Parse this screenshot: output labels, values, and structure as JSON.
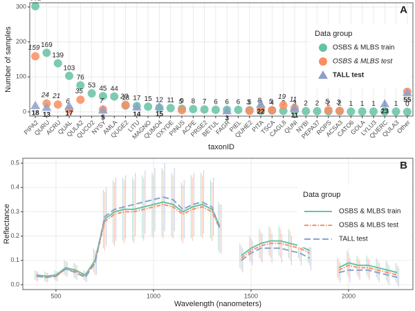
{
  "chart_data": [
    {
      "type": "scatter",
      "panel_label": "A",
      "x_label": "taxonID",
      "y_label": "Number of samples",
      "legend_title": "Data group",
      "legend_position": "top-right",
      "grid": true,
      "categories": [
        "PIPA2",
        "QURU",
        "ACRU",
        "QUAL",
        "QULA2",
        "QUCO2",
        "NYSY",
        "AMLA",
        "QUGE2",
        "LITU",
        "MAGNO",
        "QUMO4",
        "OXYDE",
        "PINUS",
        "ACPE",
        "PRSE2",
        "BETUL",
        "FAGR",
        "PIEL",
        "QUHE2",
        "PITA",
        "TSCA",
        "CAGL8",
        "QUNI",
        "NYBI",
        "PEPA37",
        "ROPS",
        "ACSA3",
        "CATO6",
        "GOLA",
        "LYLU3",
        "QUERC",
        "QULA3",
        "Other"
      ],
      "ylim": [
        -12,
        312
      ],
      "yticks": [
        0,
        100,
        200,
        300
      ],
      "series": [
        {
          "name": "OSBS & MLBS train",
          "color": "#66c2a5",
          "marker": "circle",
          "values": [
            302,
            169,
            139,
            103,
            76,
            53,
            45,
            44,
            18,
            17,
            15,
            12,
            11,
            9,
            8,
            7,
            6,
            6,
            6,
            5,
            3,
            4,
            3,
            3,
            2,
            2,
            2,
            2,
            1,
            1,
            1,
            1,
            1,
            0
          ]
        },
        {
          "name": "OSBS & MLBS test",
          "color": "#fc8d62",
          "marker": "circle",
          "values": [
            159,
            24,
            21,
            6,
            35,
            null,
            7,
            null,
            20,
            null,
            null,
            null,
            null,
            5,
            null,
            null,
            null,
            null,
            null,
            3,
            8,
            5,
            19,
            11,
            null,
            null,
            5,
            3,
            null,
            null,
            null,
            null,
            null,
            58
          ]
        },
        {
          "name": "TALL test",
          "color": "#8da0cb",
          "marker": "triangle",
          "values": [
            18,
            13,
            null,
            17,
            null,
            null,
            5,
            null,
            null,
            14,
            null,
            15,
            null,
            null,
            null,
            null,
            null,
            3,
            null,
            null,
            22,
            null,
            null,
            11,
            null,
            null,
            null,
            null,
            null,
            null,
            null,
            23,
            null,
            55
          ]
        }
      ]
    },
    {
      "type": "line",
      "panel_label": "B",
      "x_label": "Wavelength (nanometers)",
      "y_label": "Reflectance",
      "legend_title": "Data group",
      "legend_position": "right",
      "grid": true,
      "x": [
        400,
        450,
        500,
        550,
        600,
        650,
        700,
        750,
        800,
        850,
        900,
        950,
        1000,
        1050,
        1100,
        1150,
        1200,
        1250,
        1300,
        1340,
        1400,
        1450,
        1500,
        1550,
        1600,
        1650,
        1700,
        1750,
        1800,
        1875,
        1950,
        2000,
        2050,
        2100,
        2150,
        2200,
        2250
      ],
      "xlim": [
        330,
        2330
      ],
      "xticks": [
        500,
        1000,
        1500,
        2000
      ],
      "ylim": [
        -0.02,
        0.52
      ],
      "yticks": [
        {
          "value": 0,
          "label": "0.0"
        },
        {
          "value": 0.1,
          "label": "0.1"
        },
        {
          "value": 0.2,
          "label": "0.2"
        },
        {
          "value": 0.3,
          "label": "0.3"
        },
        {
          "value": 0.4,
          "label": "0.4"
        },
        {
          "value": 0.5,
          "label": "0.5"
        }
      ],
      "series": [
        {
          "name": "OSBS & MLBS train",
          "color": "#66c2a5",
          "linetype": "solid",
          "values": [
            0.04,
            0.035,
            0.04,
            0.07,
            0.06,
            0.04,
            0.1,
            0.27,
            0.3,
            0.31,
            0.31,
            0.32,
            0.33,
            0.34,
            0.33,
            0.3,
            0.32,
            0.33,
            0.31,
            0.24,
            null,
            0.12,
            0.15,
            0.17,
            0.18,
            0.18,
            0.17,
            0.16,
            0.14,
            null,
            0.07,
            0.09,
            0.08,
            0.08,
            0.07,
            0.06,
            0.05
          ],
          "errors": [
            0.02,
            0.02,
            0.02,
            0.03,
            0.03,
            0.02,
            0.05,
            0.12,
            0.13,
            0.13,
            0.13,
            0.13,
            0.13,
            0.14,
            0.13,
            0.12,
            0.13,
            0.13,
            0.12,
            0.1,
            null,
            0.05,
            0.05,
            0.06,
            0.06,
            0.06,
            0.06,
            0.05,
            0.05,
            null,
            0.04,
            0.05,
            0.04,
            0.04,
            0.04,
            0.04,
            0.04
          ]
        },
        {
          "name": "OSBS & MLBS test",
          "color": "#fc8d62",
          "linetype": "dotdash",
          "values": [
            0.035,
            0.03,
            0.035,
            0.065,
            0.055,
            0.035,
            0.09,
            0.26,
            0.29,
            0.3,
            0.3,
            0.31,
            0.32,
            0.33,
            0.32,
            0.29,
            0.31,
            0.32,
            0.3,
            0.23,
            null,
            0.11,
            0.14,
            0.16,
            0.17,
            0.17,
            0.16,
            0.15,
            0.13,
            null,
            0.06,
            0.08,
            0.07,
            0.07,
            0.06,
            0.05,
            0.04
          ],
          "errors": [
            0.02,
            0.02,
            0.02,
            0.03,
            0.03,
            0.02,
            0.05,
            0.12,
            0.13,
            0.13,
            0.13,
            0.13,
            0.13,
            0.14,
            0.13,
            0.12,
            0.13,
            0.13,
            0.12,
            0.1,
            null,
            0.05,
            0.05,
            0.06,
            0.06,
            0.06,
            0.06,
            0.05,
            0.05,
            null,
            0.04,
            0.05,
            0.04,
            0.04,
            0.04,
            0.04,
            0.04
          ]
        },
        {
          "name": "TALL test",
          "color": "#8da0cb",
          "linetype": "longdash",
          "values": [
            0.035,
            0.03,
            0.035,
            0.065,
            0.05,
            0.03,
            0.09,
            0.28,
            0.31,
            0.32,
            0.33,
            0.34,
            0.35,
            0.36,
            0.35,
            0.31,
            0.33,
            0.34,
            0.32,
            0.23,
            null,
            0.1,
            0.13,
            0.15,
            0.15,
            0.15,
            0.14,
            0.13,
            0.11,
            null,
            0.05,
            0.06,
            0.06,
            0.06,
            0.05,
            0.04,
            0.03
          ],
          "errors": [
            0.02,
            0.02,
            0.02,
            0.03,
            0.03,
            0.02,
            0.05,
            0.12,
            0.13,
            0.13,
            0.13,
            0.13,
            0.13,
            0.14,
            0.13,
            0.12,
            0.13,
            0.13,
            0.12,
            0.1,
            null,
            0.05,
            0.05,
            0.06,
            0.06,
            0.06,
            0.06,
            0.05,
            0.05,
            null,
            0.04,
            0.05,
            0.04,
            0.04,
            0.04,
            0.04,
            0.04
          ]
        }
      ]
    }
  ]
}
